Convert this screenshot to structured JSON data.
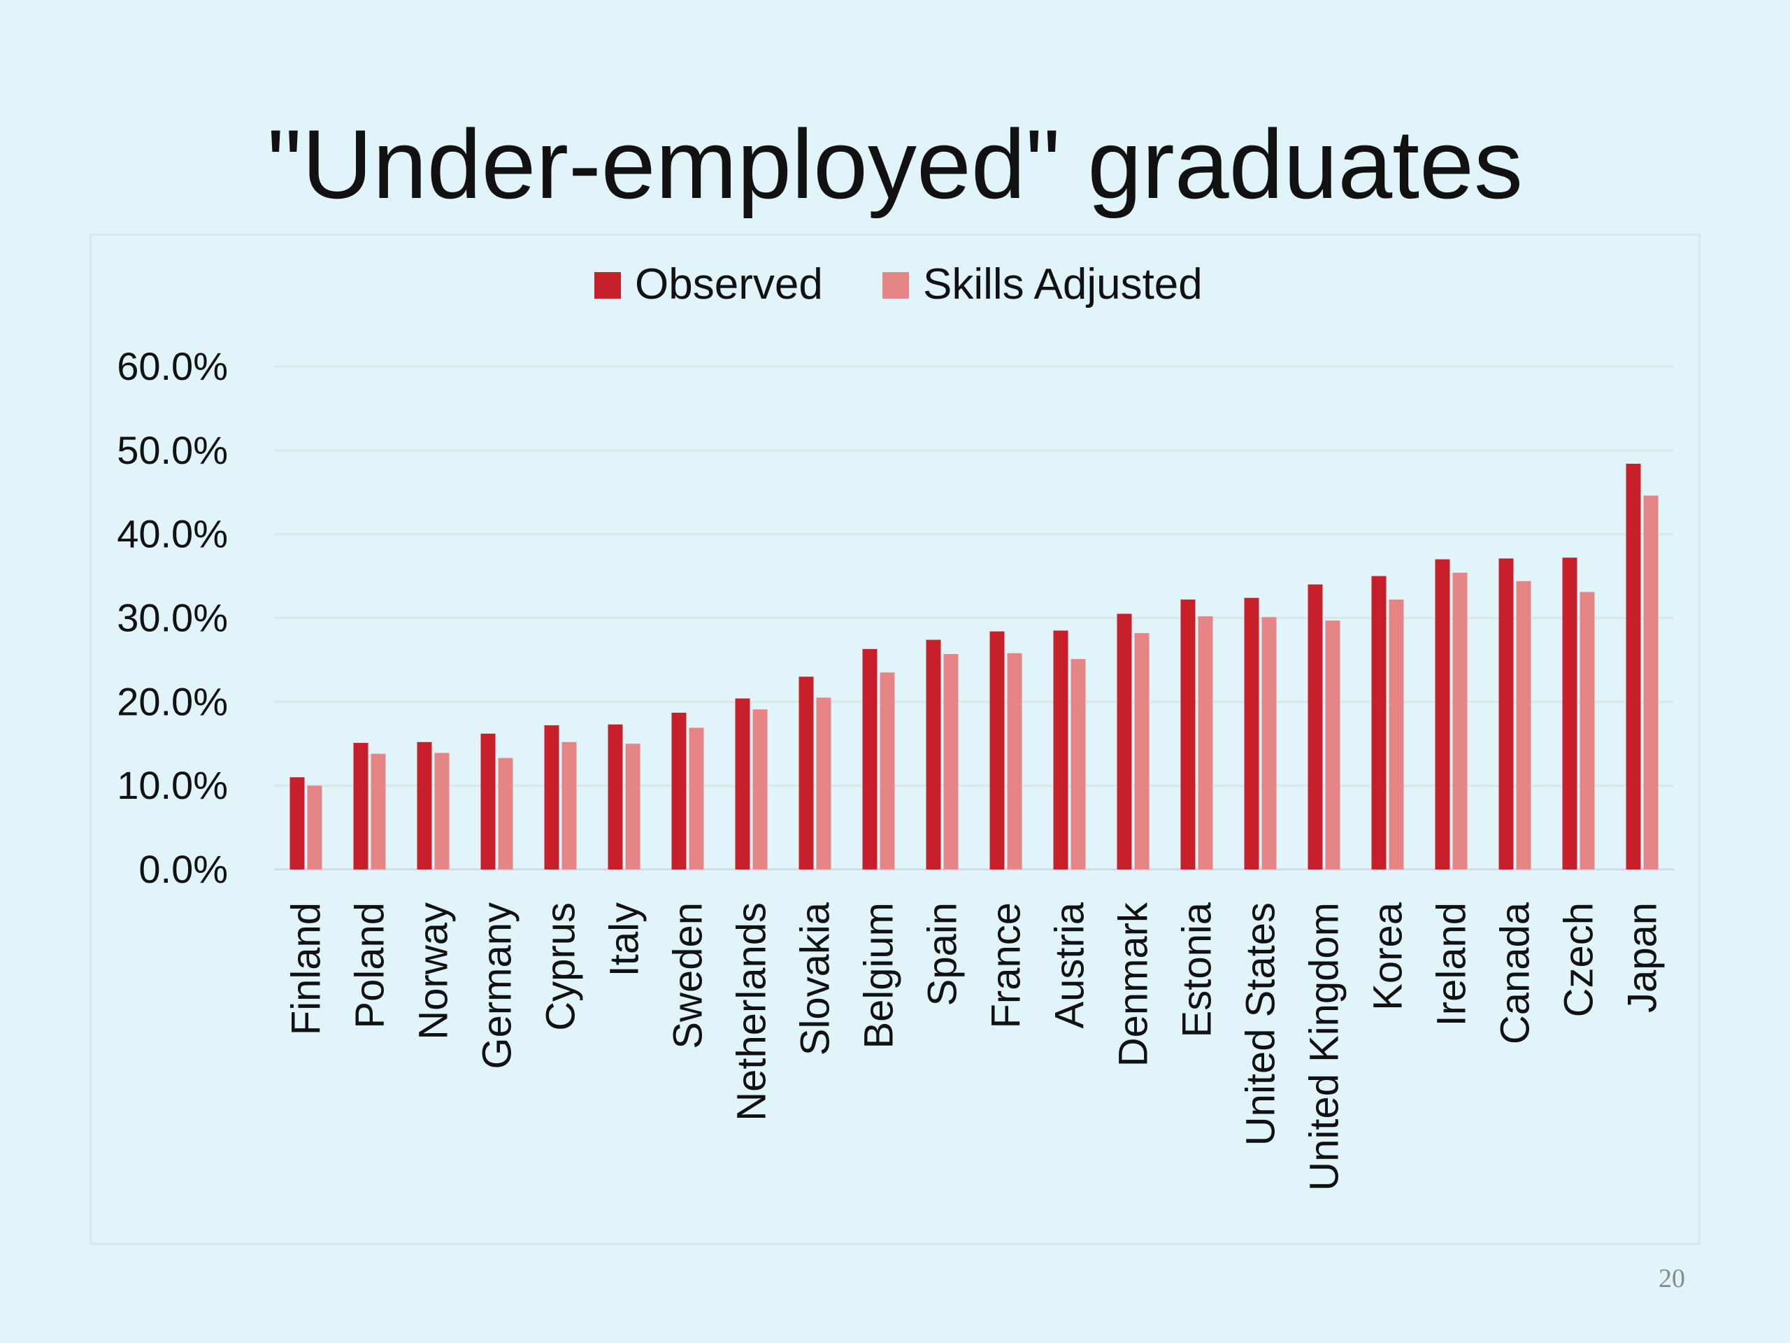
{
  "slide": {
    "title": "\"Under-employed\" graduates",
    "page_number": "20"
  },
  "colors": {
    "observed": "#c8202a",
    "skills_adjusted": "#e68585",
    "gridline": "#d9e6ea",
    "background": "#e1f4f9"
  },
  "chart_data": {
    "type": "bar",
    "title": "",
    "xlabel": "",
    "ylabel": "",
    "ylim": [
      0,
      60
    ],
    "yticks": [
      "0.0%",
      "10.0%",
      "20.0%",
      "30.0%",
      "40.0%",
      "50.0%",
      "60.0%"
    ],
    "grid": true,
    "legend_position": "top",
    "categories": [
      "Finland",
      "Poland",
      "Norway",
      "Germany",
      "Cyprus",
      "Italy",
      "Sweden",
      "Netherlands",
      "Slovakia",
      "Belgium",
      "Spain",
      "France",
      "Austria",
      "Denmark",
      "Estonia",
      "United States",
      "United Kingdom",
      "Korea",
      "Ireland",
      "Canada",
      "Czech",
      "Japan"
    ],
    "series": [
      {
        "name": "Observed",
        "values": [
          11.0,
          15.1,
          15.2,
          16.2,
          17.2,
          17.3,
          18.7,
          20.4,
          23.0,
          26.3,
          27.4,
          28.4,
          28.5,
          30.5,
          32.2,
          32.4,
          34.0,
          35.0,
          37.0,
          37.1,
          37.2,
          48.4
        ]
      },
      {
        "name": "Skills Adjusted",
        "values": [
          10.0,
          13.8,
          13.9,
          13.3,
          15.2,
          15.0,
          16.9,
          19.1,
          20.5,
          23.5,
          25.7,
          25.8,
          25.1,
          28.2,
          30.2,
          30.1,
          29.7,
          32.2,
          35.4,
          34.4,
          33.1,
          44.6
        ]
      }
    ]
  }
}
